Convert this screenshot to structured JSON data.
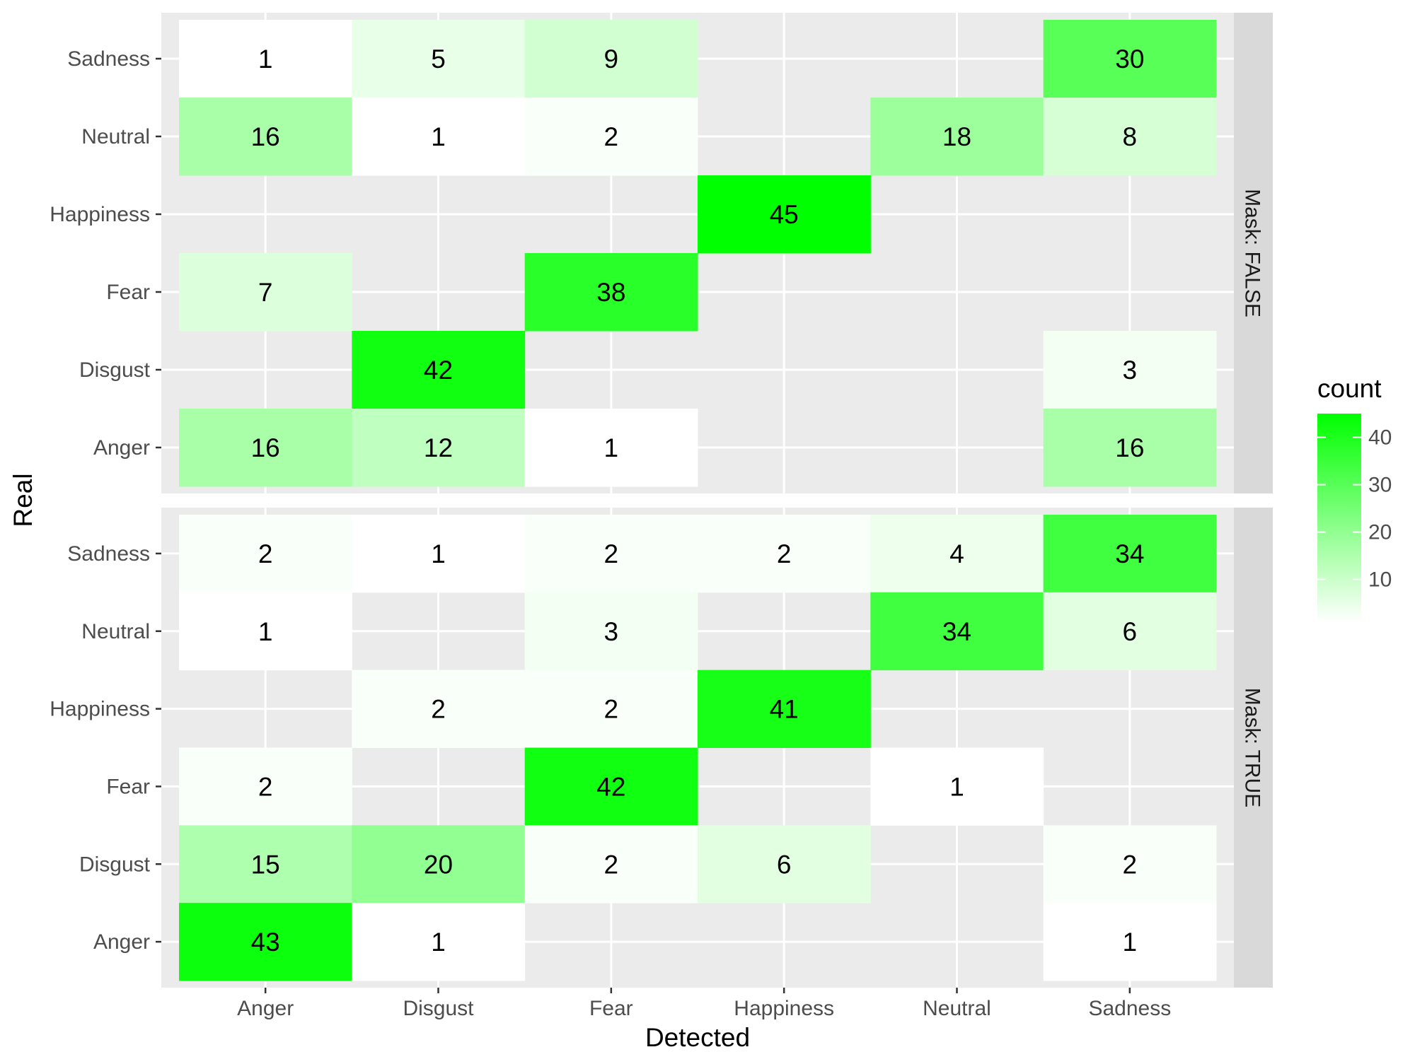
{
  "chart_data": {
    "type": "heatmap",
    "xlabel": "Detected",
    "ylabel": "Real",
    "x_categories": [
      "Anger",
      "Disgust",
      "Fear",
      "Happiness",
      "Neutral",
      "Sadness"
    ],
    "y_categories": [
      "Anger",
      "Disgust",
      "Fear",
      "Happiness",
      "Neutral",
      "Sadness"
    ],
    "grid": true,
    "legend": {
      "title": "count",
      "placement": "right",
      "ticks": [
        10,
        20,
        30,
        40
      ],
      "range": [
        1,
        45
      ],
      "low_color": "#ffffff",
      "high_color": "#00ff00"
    },
    "facets": [
      {
        "label": "Mask: FALSE",
        "cells": [
          {
            "x": "Anger",
            "y": "Sadness",
            "count": 1
          },
          {
            "x": "Disgust",
            "y": "Sadness",
            "count": 5
          },
          {
            "x": "Fear",
            "y": "Sadness",
            "count": 9
          },
          {
            "x": "Sadness",
            "y": "Sadness",
            "count": 30
          },
          {
            "x": "Anger",
            "y": "Neutral",
            "count": 16
          },
          {
            "x": "Disgust",
            "y": "Neutral",
            "count": 1
          },
          {
            "x": "Fear",
            "y": "Neutral",
            "count": 2
          },
          {
            "x": "Neutral",
            "y": "Neutral",
            "count": 18
          },
          {
            "x": "Sadness",
            "y": "Neutral",
            "count": 8
          },
          {
            "x": "Happiness",
            "y": "Happiness",
            "count": 45
          },
          {
            "x": "Anger",
            "y": "Fear",
            "count": 7
          },
          {
            "x": "Fear",
            "y": "Fear",
            "count": 38
          },
          {
            "x": "Disgust",
            "y": "Disgust",
            "count": 42
          },
          {
            "x": "Sadness",
            "y": "Disgust",
            "count": 3
          },
          {
            "x": "Anger",
            "y": "Anger",
            "count": 16
          },
          {
            "x": "Disgust",
            "y": "Anger",
            "count": 12
          },
          {
            "x": "Fear",
            "y": "Anger",
            "count": 1
          },
          {
            "x": "Sadness",
            "y": "Anger",
            "count": 16
          }
        ]
      },
      {
        "label": "Mask: TRUE",
        "cells": [
          {
            "x": "Anger",
            "y": "Sadness",
            "count": 2
          },
          {
            "x": "Disgust",
            "y": "Sadness",
            "count": 1
          },
          {
            "x": "Fear",
            "y": "Sadness",
            "count": 2
          },
          {
            "x": "Happiness",
            "y": "Sadness",
            "count": 2
          },
          {
            "x": "Neutral",
            "y": "Sadness",
            "count": 4
          },
          {
            "x": "Sadness",
            "y": "Sadness",
            "count": 34
          },
          {
            "x": "Anger",
            "y": "Neutral",
            "count": 1
          },
          {
            "x": "Fear",
            "y": "Neutral",
            "count": 3
          },
          {
            "x": "Neutral",
            "y": "Neutral",
            "count": 34
          },
          {
            "x": "Sadness",
            "y": "Neutral",
            "count": 6
          },
          {
            "x": "Disgust",
            "y": "Happiness",
            "count": 2
          },
          {
            "x": "Fear",
            "y": "Happiness",
            "count": 2
          },
          {
            "x": "Happiness",
            "y": "Happiness",
            "count": 41
          },
          {
            "x": "Anger",
            "y": "Fear",
            "count": 2
          },
          {
            "x": "Fear",
            "y": "Fear",
            "count": 42
          },
          {
            "x": "Neutral",
            "y": "Fear",
            "count": 1
          },
          {
            "x": "Anger",
            "y": "Disgust",
            "count": 15
          },
          {
            "x": "Disgust",
            "y": "Disgust",
            "count": 20
          },
          {
            "x": "Fear",
            "y": "Disgust",
            "count": 2
          },
          {
            "x": "Happiness",
            "y": "Disgust",
            "count": 6
          },
          {
            "x": "Sadness",
            "y": "Disgust",
            "count": 2
          },
          {
            "x": "Anger",
            "y": "Anger",
            "count": 43
          },
          {
            "x": "Disgust",
            "y": "Anger",
            "count": 1
          },
          {
            "x": "Sadness",
            "y": "Anger",
            "count": 1
          }
        ]
      }
    ]
  }
}
